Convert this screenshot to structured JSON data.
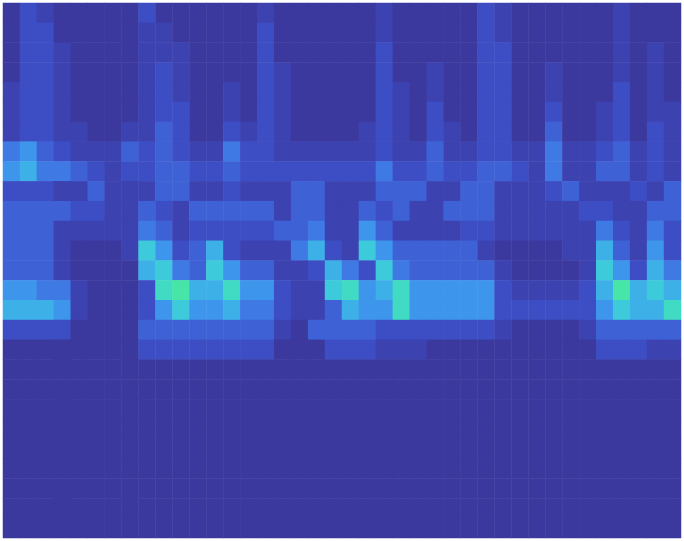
{
  "chart_data": {
    "type": "heatmap",
    "tick_labels": false,
    "zlim": [
      0,
      9
    ],
    "cells": [
      [
        0,
        2,
        1,
        0,
        0,
        0,
        0,
        0,
        2,
        0,
        0,
        0,
        0,
        0,
        0,
        1,
        0,
        0,
        0,
        0,
        0,
        0,
        1,
        0,
        0,
        0,
        0,
        0,
        2,
        1,
        0,
        0,
        0,
        0,
        0,
        0,
        1,
        0,
        0,
        0
      ],
      [
        0,
        2,
        2,
        0,
        0,
        0,
        0,
        0,
        1,
        1,
        0,
        0,
        0,
        0,
        0,
        2,
        0,
        0,
        0,
        0,
        0,
        0,
        1,
        0,
        0,
        0,
        0,
        0,
        2,
        1,
        0,
        0,
        0,
        0,
        0,
        0,
        1,
        0,
        0,
        0
      ],
      [
        0,
        2,
        2,
        1,
        0,
        0,
        0,
        0,
        1,
        1,
        1,
        0,
        0,
        0,
        0,
        2,
        0,
        0,
        0,
        0,
        0,
        0,
        2,
        0,
        0,
        0,
        0,
        0,
        2,
        2,
        0,
        0,
        0,
        0,
        0,
        0,
        1,
        0,
        1,
        0
      ],
      [
        0,
        2,
        2,
        1,
        0,
        0,
        0,
        0,
        1,
        2,
        1,
        0,
        0,
        0,
        0,
        2,
        1,
        0,
        0,
        0,
        0,
        0,
        2,
        0,
        0,
        1,
        0,
        0,
        2,
        2,
        0,
        0,
        1,
        0,
        0,
        0,
        1,
        0,
        1,
        0
      ],
      [
        1,
        2,
        2,
        1,
        0,
        0,
        0,
        0,
        1,
        2,
        1,
        0,
        0,
        1,
        0,
        2,
        1,
        0,
        0,
        0,
        0,
        0,
        2,
        1,
        0,
        1,
        0,
        0,
        2,
        2,
        0,
        0,
        1,
        0,
        0,
        0,
        2,
        0,
        1,
        0
      ],
      [
        1,
        2,
        2,
        1,
        0,
        0,
        0,
        0,
        1,
        2,
        2,
        0,
        0,
        1,
        0,
        2,
        1,
        0,
        0,
        0,
        0,
        0,
        2,
        1,
        0,
        2,
        0,
        0,
        2,
        2,
        0,
        0,
        2,
        0,
        0,
        1,
        2,
        0,
        1,
        1
      ],
      [
        1,
        2,
        2,
        1,
        1,
        0,
        0,
        1,
        1,
        3,
        2,
        0,
        0,
        2,
        1,
        2,
        1,
        0,
        0,
        0,
        0,
        1,
        2,
        1,
        0,
        2,
        1,
        0,
        2,
        2,
        0,
        0,
        3,
        0,
        0,
        1,
        2,
        0,
        2,
        1
      ],
      [
        4,
        5,
        3,
        2,
        1,
        1,
        1,
        3,
        2,
        3,
        2,
        1,
        1,
        4,
        2,
        2,
        1,
        1,
        1,
        1,
        1,
        1,
        2,
        1,
        1,
        3,
        1,
        1,
        2,
        2,
        1,
        1,
        4,
        1,
        1,
        2,
        3,
        1,
        2,
        1
      ],
      [
        5,
        6,
        4,
        4,
        3,
        2,
        1,
        2,
        2,
        3,
        3,
        2,
        2,
        3,
        2,
        2,
        2,
        2,
        2,
        2,
        2,
        2,
        4,
        2,
        2,
        3,
        2,
        2,
        3,
        3,
        2,
        1,
        4,
        1,
        1,
        3,
        3,
        1,
        2,
        1
      ],
      [
        2,
        2,
        2,
        1,
        1,
        3,
        1,
        1,
        1,
        3,
        3,
        1,
        1,
        2,
        1,
        1,
        1,
        3,
        3,
        1,
        1,
        1,
        3,
        3,
        3,
        1,
        1,
        3,
        3,
        1,
        1,
        1,
        2,
        3,
        1,
        1,
        1,
        2,
        1,
        3
      ],
      [
        3,
        3,
        3,
        3,
        2,
        2,
        1,
        1,
        3,
        2,
        1,
        3,
        3,
        3,
        3,
        3,
        1,
        3,
        3,
        1,
        1,
        3,
        2,
        3,
        1,
        1,
        3,
        3,
        3,
        1,
        1,
        1,
        1,
        1,
        2,
        2,
        1,
        1,
        3,
        3
      ],
      [
        3,
        3,
        3,
        1,
        1,
        1,
        1,
        1,
        4,
        3,
        1,
        2,
        2,
        2,
        2,
        2,
        3,
        3,
        4,
        1,
        1,
        5,
        3,
        1,
        1,
        1,
        1,
        2,
        2,
        1,
        1,
        1,
        1,
        1,
        1,
        4,
        2,
        1,
        4,
        2
      ],
      [
        3,
        3,
        3,
        1,
        0,
        0,
        0,
        1,
        7,
        5,
        2,
        3,
        6,
        2,
        1,
        1,
        1,
        4,
        6,
        2,
        1,
        7,
        5,
        3,
        3,
        3,
        3,
        3,
        1,
        0,
        0,
        0,
        0,
        1,
        1,
        6,
        3,
        1,
        5,
        2
      ],
      [
        3,
        3,
        3,
        1,
        0,
        0,
        0,
        0,
        6,
        7,
        4,
        3,
        7,
        5,
        3,
        3,
        1,
        1,
        2,
        6,
        4,
        2,
        7,
        4,
        3,
        3,
        3,
        3,
        3,
        1,
        0,
        0,
        0,
        0,
        1,
        7,
        5,
        2,
        6,
        4
      ],
      [
        5,
        5,
        4,
        4,
        1,
        0,
        0,
        0,
        2,
        8,
        9,
        6,
        6,
        8,
        5,
        5,
        2,
        1,
        1,
        7,
        8,
        5,
        6,
        8,
        5,
        5,
        5,
        5,
        5,
        2,
        1,
        1,
        1,
        1,
        2,
        6,
        9,
        6,
        7,
        6
      ],
      [
        6,
        6,
        6,
        5,
        1,
        0,
        0,
        0,
        2,
        5,
        7,
        5,
        5,
        6,
        4,
        4,
        2,
        1,
        1,
        3,
        6,
        5,
        5,
        8,
        5,
        5,
        5,
        5,
        5,
        2,
        2,
        2,
        2,
        2,
        2,
        5,
        7,
        6,
        6,
        8
      ],
      [
        2,
        2,
        2,
        2,
        0,
        0,
        0,
        0,
        3,
        3,
        3,
        3,
        3,
        3,
        3,
        3,
        1,
        0,
        3,
        3,
        3,
        3,
        2,
        2,
        2,
        2,
        2,
        2,
        2,
        1,
        0,
        0,
        0,
        0,
        1,
        3,
        3,
        3,
        3,
        3
      ],
      [
        0,
        0,
        0,
        0,
        0,
        0,
        0,
        0,
        2,
        2,
        2,
        2,
        2,
        2,
        2,
        2,
        0,
        0,
        0,
        2,
        2,
        2,
        1,
        1,
        1,
        0,
        0,
        0,
        0,
        0,
        0,
        0,
        0,
        0,
        0,
        2,
        2,
        2,
        1,
        1
      ],
      [
        0,
        0,
        0,
        0,
        0,
        0,
        0,
        0,
        0,
        0,
        0,
        0,
        0,
        0,
        0,
        0,
        0,
        0,
        0,
        0,
        0,
        0,
        0,
        0,
        0,
        0,
        0,
        0,
        0,
        0,
        0,
        0,
        0,
        0,
        0,
        0,
        0,
        0,
        0,
        0
      ],
      [
        0,
        0,
        0,
        0,
        0,
        0,
        0,
        0,
        0,
        0,
        0,
        0,
        0,
        0,
        0,
        0,
        0,
        0,
        0,
        0,
        0,
        0,
        0,
        0,
        0,
        0,
        0,
        0,
        0,
        0,
        0,
        0,
        0,
        0,
        0,
        0,
        0,
        0,
        0,
        0
      ],
      [
        0,
        0,
        0,
        0,
        0,
        0,
        0,
        0,
        0,
        0,
        0,
        0,
        0,
        0,
        0,
        0,
        0,
        0,
        0,
        0,
        0,
        0,
        0,
        0,
        0,
        0,
        0,
        0,
        0,
        0,
        0,
        0,
        0,
        0,
        0,
        0,
        0,
        0,
        0,
        0
      ],
      [
        0,
        0,
        0,
        0,
        0,
        0,
        0,
        0,
        0,
        0,
        0,
        0,
        0,
        0,
        0,
        0,
        0,
        0,
        0,
        0,
        0,
        0,
        0,
        0,
        0,
        0,
        0,
        0,
        0,
        0,
        0,
        0,
        0,
        0,
        0,
        0,
        0,
        0,
        0,
        0
      ],
      [
        0,
        0,
        0,
        0,
        0,
        0,
        0,
        0,
        0,
        0,
        0,
        0,
        0,
        0,
        0,
        0,
        0,
        0,
        0,
        0,
        0,
        0,
        0,
        0,
        0,
        0,
        0,
        0,
        0,
        0,
        0,
        0,
        0,
        0,
        0,
        0,
        0,
        0,
        0,
        0
      ],
      [
        0,
        0,
        0,
        0,
        0,
        0,
        0,
        0,
        0,
        0,
        0,
        0,
        0,
        0,
        0,
        0,
        0,
        0,
        0,
        0,
        0,
        0,
        0,
        0,
        0,
        0,
        0,
        0,
        0,
        0,
        0,
        0,
        0,
        0,
        0,
        0,
        0,
        0,
        0,
        0
      ],
      [
        0,
        0,
        0,
        0,
        0,
        0,
        0,
        0,
        0,
        0,
        0,
        0,
        0,
        0,
        0,
        0,
        0,
        0,
        0,
        0,
        0,
        0,
        0,
        0,
        0,
        0,
        0,
        0,
        0,
        0,
        0,
        0,
        0,
        0,
        0,
        0,
        0,
        0,
        0,
        0
      ],
      [
        0,
        0,
        0,
        0,
        0,
        0,
        0,
        0,
        0,
        0,
        0,
        0,
        0,
        0,
        0,
        0,
        0,
        0,
        0,
        0,
        0,
        0,
        0,
        0,
        0,
        0,
        0,
        0,
        0,
        0,
        0,
        0,
        0,
        0,
        0,
        0,
        0,
        0,
        0,
        0
      ],
      [
        0,
        0,
        0,
        0,
        0,
        0,
        0,
        0,
        0,
        0,
        0,
        0,
        0,
        0,
        0,
        0,
        0,
        0,
        0,
        0,
        0,
        0,
        0,
        0,
        0,
        0,
        0,
        0,
        0,
        0,
        0,
        0,
        0,
        0,
        0,
        0,
        0,
        0,
        0,
        0
      ]
    ]
  }
}
